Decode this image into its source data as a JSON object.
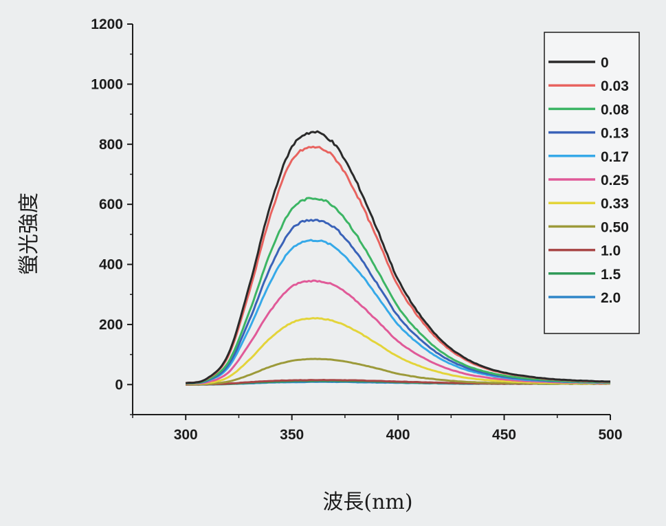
{
  "chart_data": {
    "type": "line",
    "title": "",
    "xlabel": "波長(nm)",
    "ylabel": "螢光強度",
    "xlim": [
      275,
      500
    ],
    "ylim": [
      -100,
      1200
    ],
    "xticks": [
      300,
      350,
      400,
      450,
      500
    ],
    "yticks": [
      0,
      200,
      400,
      600,
      800,
      1000,
      1200
    ],
    "grid": false,
    "legend_position": "top-right",
    "peak_wavelength": 360,
    "x": [
      300,
      310,
      320,
      330,
      340,
      350,
      360,
      370,
      380,
      390,
      400,
      410,
      420,
      430,
      440,
      450,
      460,
      470,
      480,
      490,
      500
    ],
    "series": [
      {
        "name": "0",
        "color": "#2a2a2a",
        "values": [
          5,
          20,
          100,
          330,
          600,
          790,
          840,
          800,
          680,
          520,
          350,
          235,
          150,
          95,
          60,
          40,
          28,
          20,
          15,
          12,
          10
        ]
      },
      {
        "name": "0.03",
        "color": "#e8635f",
        "values": [
          5,
          19,
          94,
          310,
          565,
          745,
          790,
          755,
          640,
          488,
          330,
          222,
          142,
          90,
          57,
          38,
          27,
          19,
          14,
          11,
          9
        ]
      },
      {
        "name": "0.08",
        "color": "#3cb564",
        "values": [
          4,
          15,
          74,
          243,
          442,
          584,
          620,
          592,
          502,
          383,
          258,
          174,
          111,
          70,
          45,
          30,
          21,
          15,
          11,
          9,
          7
        ]
      },
      {
        "name": "0.13",
        "color": "#3a62b8",
        "values": [
          4,
          13,
          65,
          215,
          392,
          517,
          548,
          523,
          443,
          338,
          228,
          153,
          98,
          62,
          40,
          26,
          19,
          13,
          10,
          8,
          7
        ]
      },
      {
        "name": "0.17",
        "color": "#36a9e8",
        "values": [
          4,
          12,
          57,
          188,
          343,
          453,
          480,
          458,
          388,
          296,
          200,
          134,
          86,
          54,
          35,
          23,
          16,
          12,
          9,
          7,
          6
        ]
      },
      {
        "name": "0.25",
        "color": "#e05a98",
        "values": [
          3,
          8,
          40,
          135,
          247,
          326,
          345,
          330,
          280,
          214,
          144,
          97,
          62,
          39,
          25,
          17,
          12,
          9,
          7,
          6,
          5
        ]
      },
      {
        "name": "0.33",
        "color": "#e3d43a",
        "values": [
          2,
          5,
          24,
          83,
          156,
          206,
          220,
          211,
          179,
          137,
          93,
          62,
          40,
          25,
          16,
          11,
          8,
          6,
          5,
          4,
          4
        ]
      },
      {
        "name": "0.50",
        "color": "#9c9a3a",
        "values": [
          1,
          2,
          10,
          32,
          60,
          79,
          85,
          82,
          70,
          54,
          36,
          24,
          16,
          10,
          7,
          5,
          4,
          3,
          3,
          3,
          3
        ]
      },
      {
        "name": "1.0",
        "color": "#a84646",
        "values": [
          0,
          1,
          3,
          8,
          12,
          14,
          15,
          15,
          14,
          12,
          10,
          8,
          6,
          5,
          4,
          3,
          3,
          3,
          3,
          3,
          3
        ]
      },
      {
        "name": "1.5",
        "color": "#2f9a58",
        "values": [
          0,
          1,
          2,
          6,
          9,
          11,
          12,
          12,
          11,
          10,
          8,
          6,
          5,
          4,
          3,
          3,
          3,
          3,
          3,
          3,
          3
        ]
      },
      {
        "name": "2.0",
        "color": "#2f86c8",
        "values": [
          0,
          0,
          2,
          4,
          7,
          8,
          9,
          9,
          8,
          7,
          6,
          5,
          4,
          3,
          3,
          3,
          3,
          3,
          3,
          3,
          3
        ]
      }
    ]
  },
  "colors": {
    "background": "#eceeef",
    "axis": "#1c1c1c"
  }
}
